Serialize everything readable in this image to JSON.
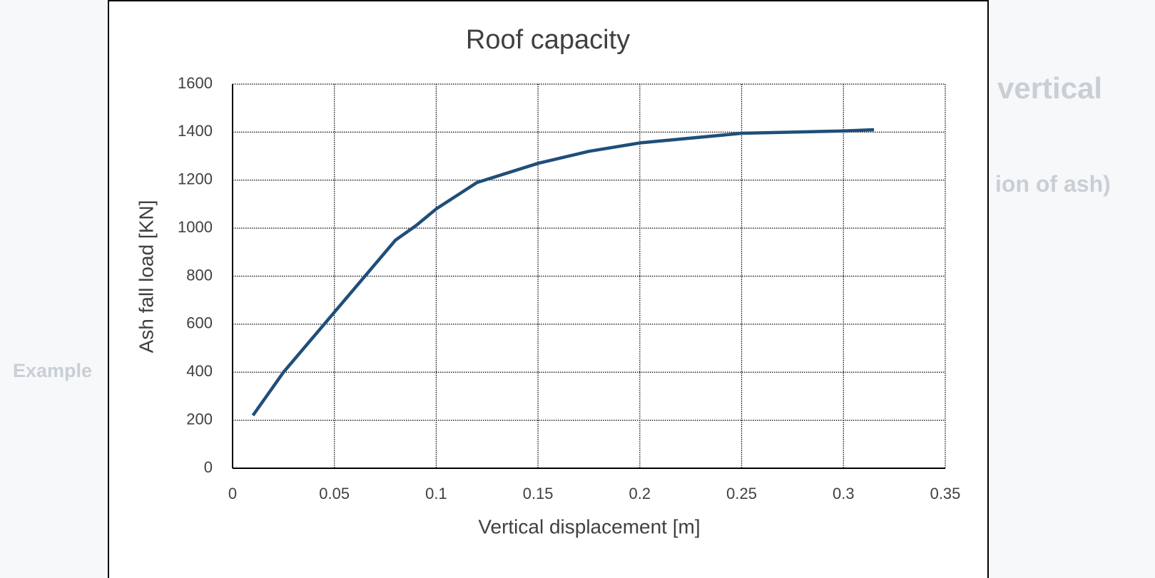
{
  "slide": {
    "background_texts": [
      "vertical",
      "ion of ash)",
      "Example"
    ]
  },
  "chart_data": {
    "type": "line",
    "title": "Roof capacity",
    "x_label": "Vertical displacement [m]",
    "y_label": "Ash fall load [KN]",
    "xlim": [
      0,
      0.35
    ],
    "xticks": [
      0,
      0.05,
      0.1,
      0.15,
      0.2,
      0.25,
      0.3,
      0.35
    ],
    "ylim": [
      0,
      1600
    ],
    "yticks": [
      0,
      200,
      400,
      600,
      800,
      1000,
      1200,
      1400,
      1600
    ],
    "grid": true,
    "x": [
      0.01,
      0.025,
      0.05,
      0.065,
      0.08,
      0.09,
      0.1,
      0.12,
      0.15,
      0.175,
      0.2,
      0.25,
      0.3,
      0.315
    ],
    "series": [
      {
        "color": "#1f4e79",
        "values": [
          220,
          400,
          650,
          800,
          950,
          1010,
          1080,
          1190,
          1270,
          1320,
          1355,
          1395,
          1405,
          1410
        ]
      }
    ]
  }
}
